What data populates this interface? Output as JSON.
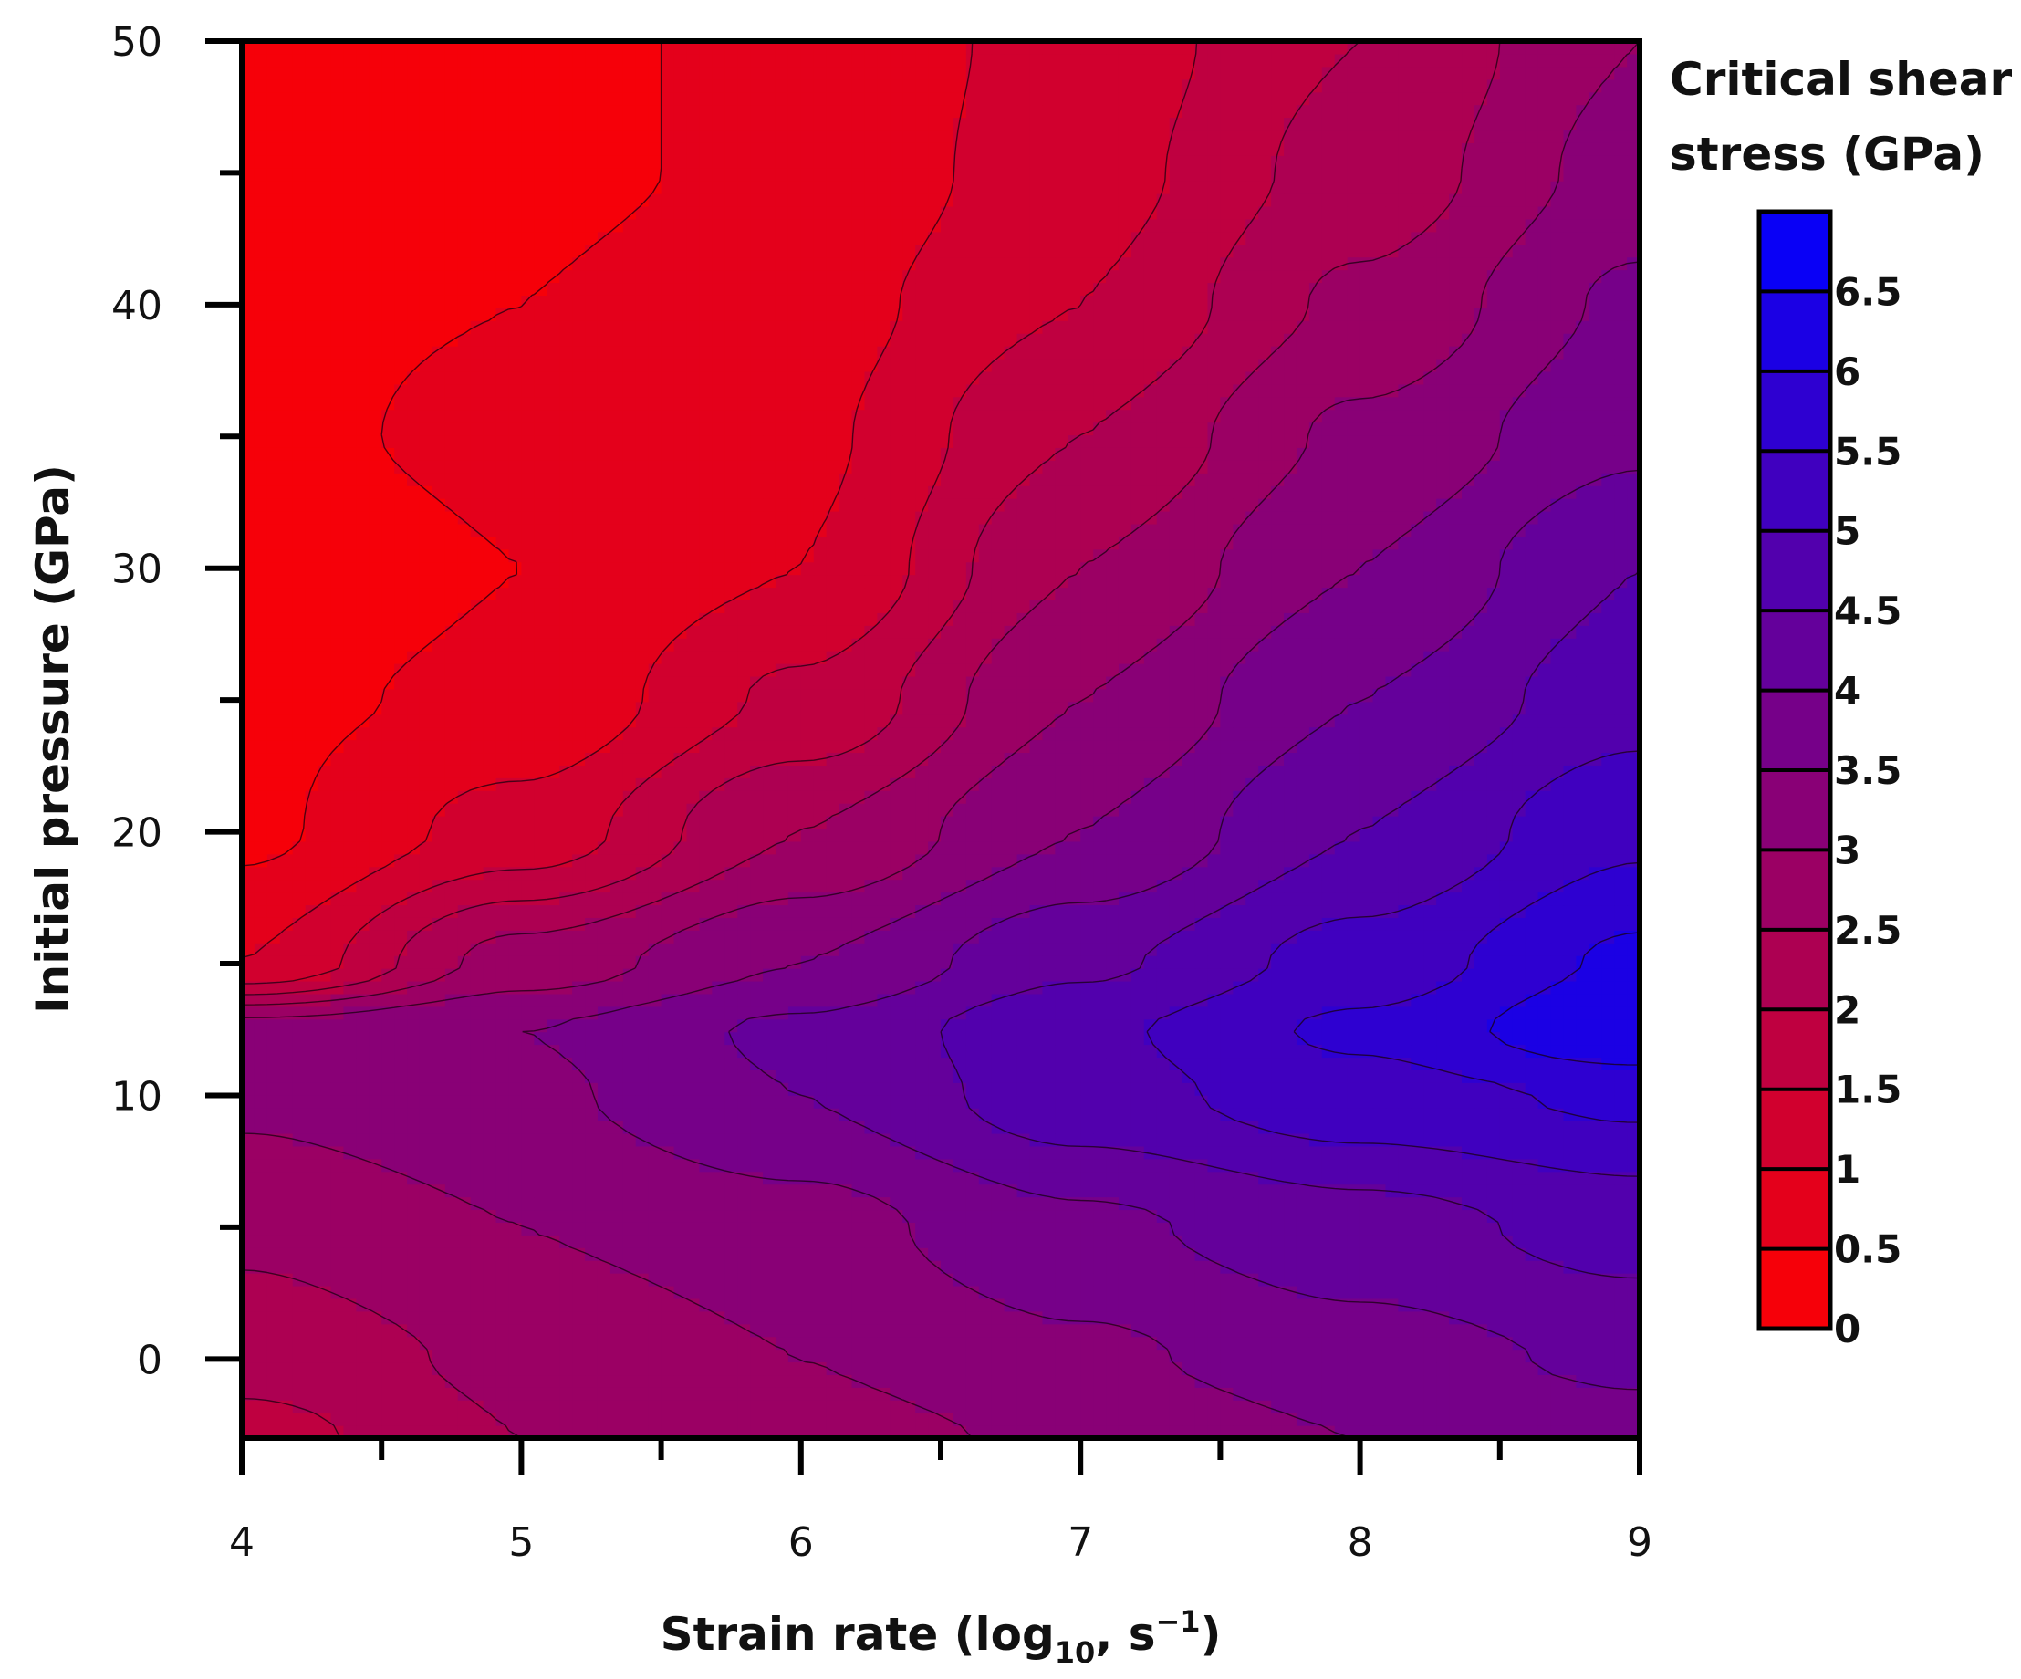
{
  "chart_data": {
    "type": "heatmap",
    "title": "",
    "xlabel": {
      "main": "Strain rate (log",
      "sub": "10",
      "after": ", s",
      "sup": "−1",
      "close": ")"
    },
    "ylabel": "Initial pressure (GPa)",
    "xlim": [
      4,
      9
    ],
    "ylim": [
      -3,
      50
    ],
    "x_ticks": [
      "4",
      "5",
      "6",
      "7",
      "8",
      "9"
    ],
    "y_ticks": [
      "0",
      "10",
      "20",
      "30",
      "40",
      "50"
    ],
    "x_tick_values": [
      4,
      5,
      6,
      7,
      8,
      9
    ],
    "y_tick_values": [
      0,
      10,
      20,
      30,
      40,
      50
    ],
    "colorbar": {
      "title_line1": "Critical shear",
      "title_line2": "stress (GPa)",
      "range": [
        0,
        7
      ],
      "labels": [
        "0",
        "0.5",
        "1",
        "1.5",
        "2",
        "2.5",
        "3",
        "3.5",
        "4",
        "4.5",
        "5",
        "5.5",
        "6",
        "6.5"
      ],
      "label_values": [
        0,
        0.5,
        1,
        1.5,
        2,
        2.5,
        3,
        3.5,
        4,
        4.5,
        5,
        5.5,
        6,
        6.5
      ],
      "low_color": "#ff0000",
      "high_color": "#0000ff"
    },
    "grid_x": [
      4,
      5,
      6,
      7,
      8,
      9
    ],
    "grid_y": [
      -3,
      0,
      5,
      10,
      12.5,
      15,
      20,
      25,
      30,
      35,
      40,
      45,
      50
    ],
    "z": [
      [
        1.8,
        2.5,
        2.8,
        3.1,
        3.5,
        3.8
      ],
      [
        2.2,
        2.6,
        3.0,
        3.4,
        3.8,
        4.1
      ],
      [
        2.6,
        3.0,
        3.3,
        3.9,
        4.3,
        4.7
      ],
      [
        3.1,
        3.4,
        4.0,
        4.8,
        5.3,
        5.6
      ],
      [
        3.2,
        3.5,
        4.1,
        4.9,
        5.6,
        6.5
      ],
      [
        1.0,
        2.7,
        3.5,
        4.4,
        5.2,
        6.1
      ],
      [
        0.4,
        1.2,
        2.5,
        3.5,
        4.5,
        5.4
      ],
      [
        0.4,
        0.6,
        1.6,
        3.0,
        4.0,
        4.8
      ],
      [
        0.2,
        0.5,
        1.0,
        2.5,
        3.5,
        4.5
      ],
      [
        0.4,
        0.6,
        0.9,
        2.0,
        3.1,
        3.9
      ],
      [
        0.4,
        0.5,
        0.8,
        1.5,
        2.6,
        3.6
      ],
      [
        0.3,
        0.4,
        0.6,
        1.3,
        2.2,
        3.2
      ],
      [
        0.3,
        0.4,
        0.6,
        1.2,
        2.0,
        3.0
      ]
    ]
  }
}
